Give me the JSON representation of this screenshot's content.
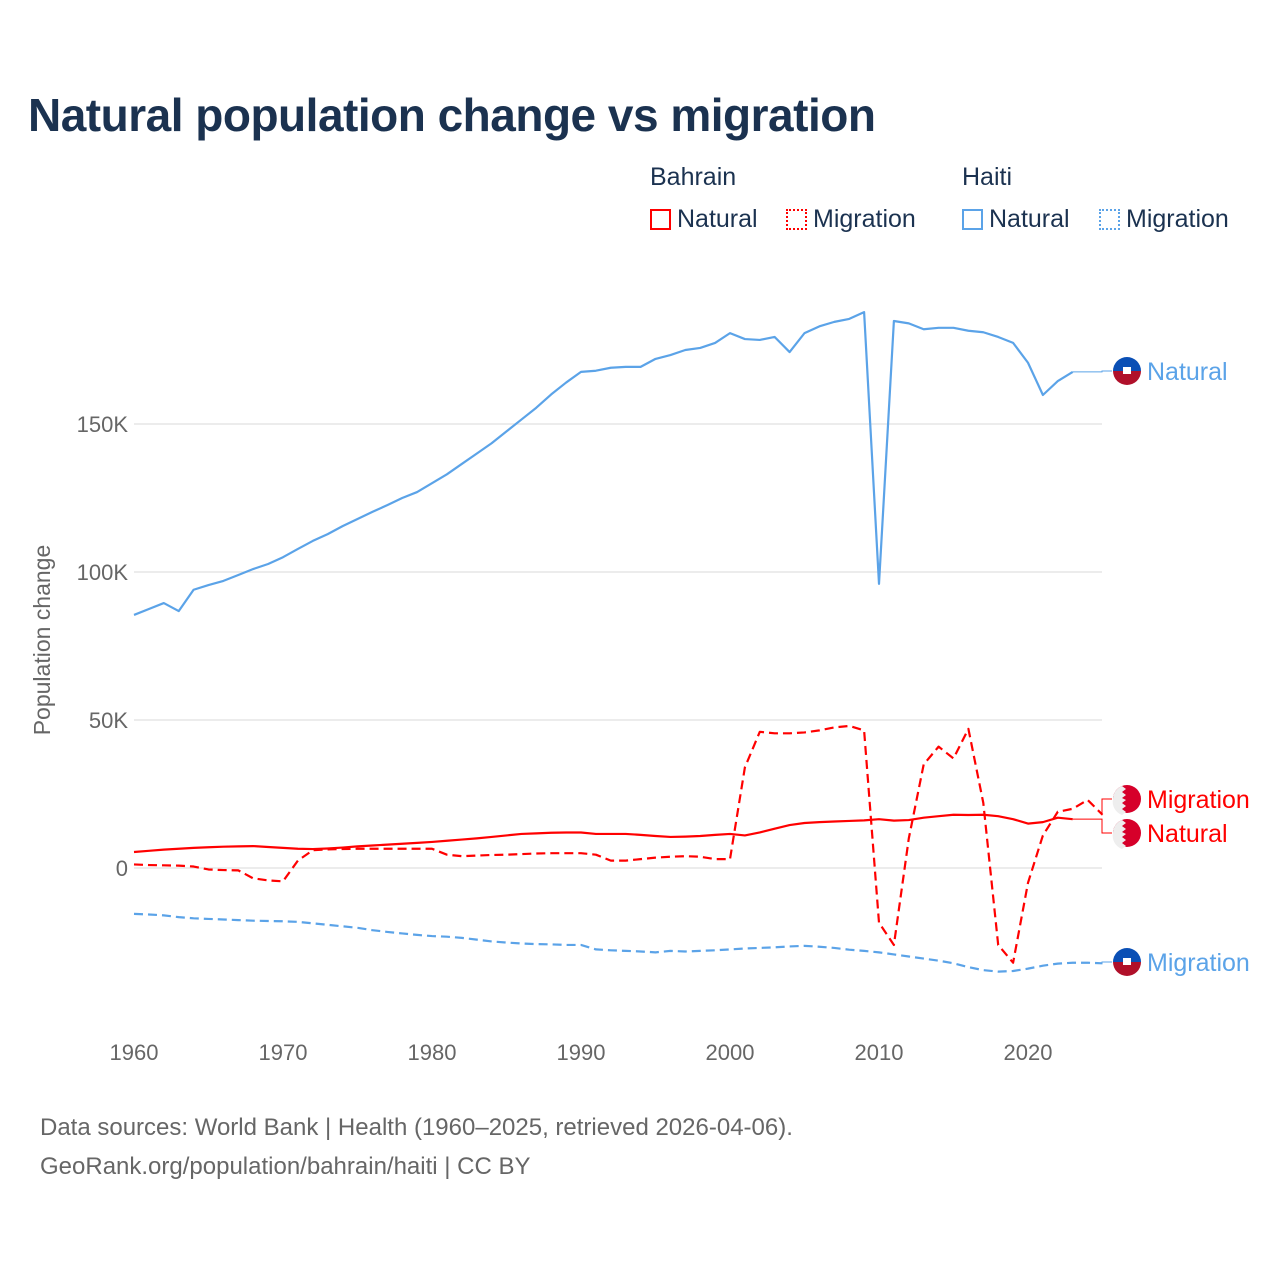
{
  "title": "Natural population change vs migration",
  "legend": {
    "groups": [
      {
        "name": "Bahrain",
        "items": [
          {
            "label": "Natural",
            "style": "solid"
          },
          {
            "label": "Migration",
            "style": "dotted"
          }
        ],
        "color": "#ff0000"
      },
      {
        "name": "Haiti",
        "items": [
          {
            "label": "Natural",
            "style": "solid"
          },
          {
            "label": "Migration",
            "style": "dotted"
          }
        ],
        "color": "#5ba3e8"
      }
    ]
  },
  "source": {
    "line1": "Data sources: World Bank | Health (1960–2025, retrieved 2026-04-06).",
    "line2": "GeoRank.org/population/bahrain/haiti | CC BY"
  },
  "chart_data": {
    "type": "line",
    "title": "Natural population change vs migration",
    "xlabel": "",
    "ylabel": "Population change",
    "xlim": [
      1960,
      2025
    ],
    "ylim": [
      -45000,
      200000
    ],
    "x_ticks": [
      1960,
      1970,
      1980,
      1990,
      2000,
      2010,
      2020
    ],
    "y_ticks": [
      {
        "value": 0,
        "label": "0"
      },
      {
        "value": 50000,
        "label": "50K"
      },
      {
        "value": 100000,
        "label": "100K"
      },
      {
        "value": 150000,
        "label": "150K"
      }
    ],
    "grid": "horizontal",
    "legend_placement": "top-right",
    "series": [
      {
        "name": "Haiti Natural",
        "end_label": "Natural",
        "country": "Haiti",
        "color": "#5ba3e8",
        "dash": "solid",
        "start_year": 1960,
        "values": [
          85500,
          87500,
          89500,
          86800,
          94000,
          95600,
          97000,
          99000,
          101000,
          102700,
          105000,
          107800,
          110500,
          112800,
          115500,
          117900,
          120300,
          122600,
          125000,
          127000,
          130000,
          133000,
          136500,
          140000,
          143500,
          147500,
          151500,
          155500,
          160000,
          164000,
          167600,
          168000,
          169000,
          169300,
          169300,
          172000,
          173300,
          175000,
          175700,
          177400,
          180700,
          178700,
          178400,
          179400,
          174300,
          180700,
          183000,
          184500,
          185500,
          187800,
          96000,
          184800,
          184000,
          182000,
          182500,
          182500,
          181500,
          181000,
          179400,
          177400,
          170700,
          159800,
          164500,
          167600
        ]
      },
      {
        "name": "Haiti Migration",
        "end_label": "Migration",
        "country": "Haiti",
        "color": "#5ba3e8",
        "dash": "dashed",
        "start_year": 1960,
        "values": [
          -15500,
          -15700,
          -16000,
          -16600,
          -17000,
          -17200,
          -17400,
          -17600,
          -17800,
          -17900,
          -18000,
          -18200,
          -18700,
          -19200,
          -19700,
          -20200,
          -21000,
          -21600,
          -22100,
          -22600,
          -23000,
          -23200,
          -23600,
          -24200,
          -24800,
          -25200,
          -25500,
          -25700,
          -25800,
          -26000,
          -26000,
          -27500,
          -27800,
          -28000,
          -28200,
          -28500,
          -28000,
          -28200,
          -28000,
          -27800,
          -27500,
          -27200,
          -27000,
          -26800,
          -26500,
          -26300,
          -26600,
          -27000,
          -27600,
          -28000,
          -28500,
          -29200,
          -29900,
          -30600,
          -31300,
          -32200,
          -33500,
          -34500,
          -35000,
          -34800,
          -34000,
          -33000,
          -32300,
          -32000,
          -32000,
          -32200
        ]
      },
      {
        "name": "Bahrain Natural",
        "end_label": "Natural",
        "country": "Bahrain",
        "color": "#ff0000",
        "dash": "solid",
        "start_year": 1960,
        "values": [
          5400,
          5800,
          6200,
          6500,
          6800,
          7000,
          7200,
          7300,
          7400,
          7100,
          6800,
          6500,
          6400,
          6600,
          6900,
          7300,
          7600,
          7900,
          8200,
          8500,
          8800,
          9200,
          9600,
          10000,
          10500,
          11000,
          11500,
          11700,
          11900,
          12000,
          12000,
          11500,
          11500,
          11500,
          11200,
          10800,
          10500,
          10600,
          10800,
          11200,
          11500,
          11000,
          12000,
          13300,
          14500,
          15200,
          15500,
          15700,
          15900,
          16100,
          16500,
          16000,
          16200,
          17000,
          17500,
          18000,
          17900,
          18000,
          17500,
          16500,
          15000,
          15500,
          17000,
          16500
        ]
      },
      {
        "name": "Bahrain Migration",
        "end_label": "Migration",
        "country": "Bahrain",
        "color": "#ff0000",
        "dash": "dashed",
        "start_year": 1960,
        "values": [
          1200,
          1000,
          900,
          800,
          500,
          -500,
          -700,
          -800,
          -3500,
          -4200,
          -4500,
          2500,
          6000,
          6300,
          6400,
          6500,
          6500,
          6500,
          6500,
          6500,
          6500,
          4500,
          4000,
          4200,
          4400,
          4500,
          4700,
          4900,
          5000,
          5000,
          5000,
          4500,
          2500,
          2500,
          3000,
          3500,
          3800,
          4000,
          3800,
          3000,
          3000,
          34000,
          46000,
          45500,
          45500,
          45800,
          46500,
          47500,
          48000,
          46500,
          -18500,
          -26000,
          10000,
          35000,
          41000,
          37000,
          47000,
          22000,
          -26000,
          -32000,
          -5000,
          11000,
          19000,
          20000,
          23000,
          18000
        ]
      }
    ]
  }
}
